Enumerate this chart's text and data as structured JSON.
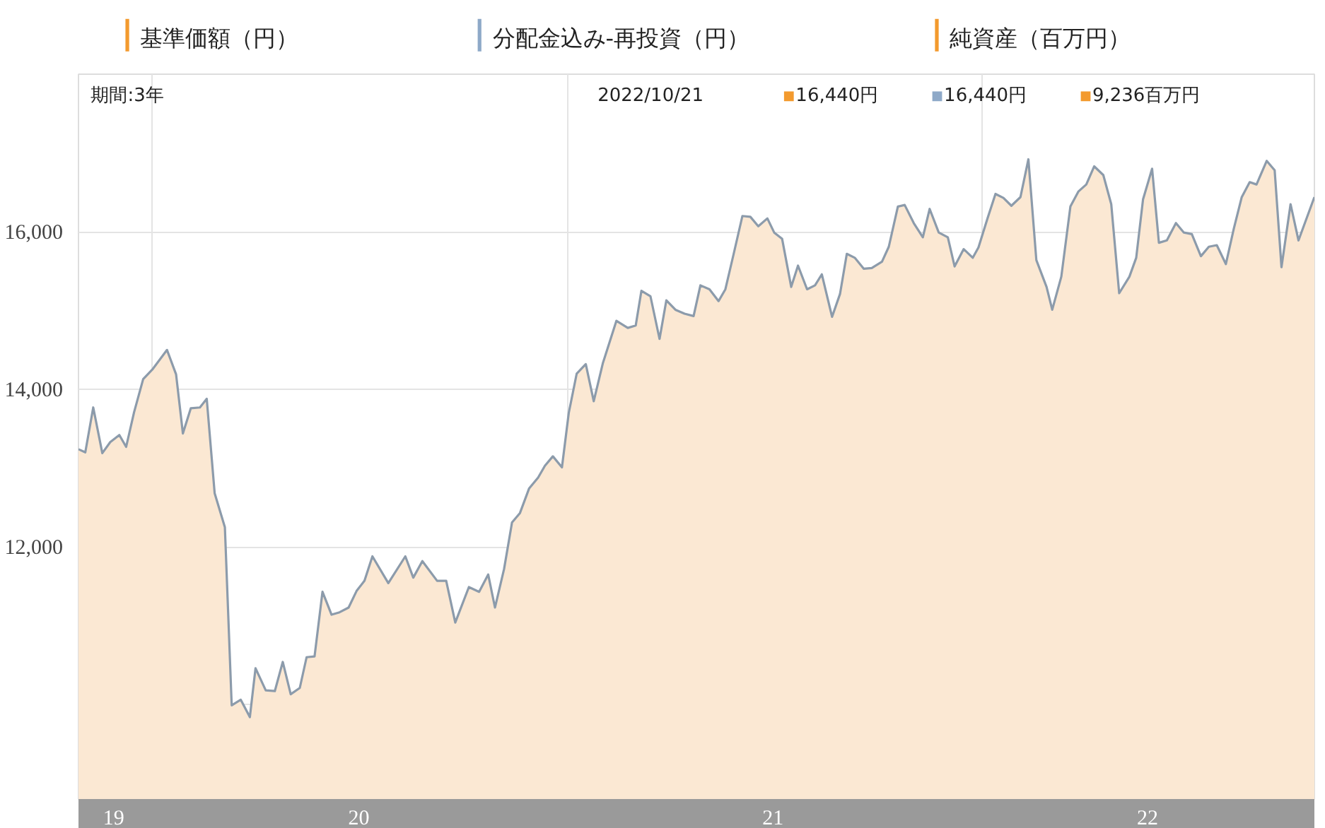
{
  "chart_data": {
    "type": "area",
    "x": [
      "2019-10-28",
      "2019-11-03",
      "2019-11-10",
      "2019-11-18",
      "2019-11-25",
      "2019-12-03",
      "2019-12-09",
      "2019-12-16",
      "2019-12-24",
      "2020-01-01",
      "2020-01-14",
      "2020-01-22",
      "2020-01-28",
      "2020-02-04",
      "2020-02-12",
      "2020-02-18",
      "2020-02-25",
      "2020-03-05",
      "2020-03-11",
      "2020-03-19",
      "2020-03-27",
      "2020-04-01",
      "2020-04-10",
      "2020-04-18",
      "2020-04-25",
      "2020-05-02",
      "2020-05-10",
      "2020-05-16",
      "2020-05-23",
      "2020-05-30",
      "2020-06-07",
      "2020-06-14",
      "2020-06-22",
      "2020-06-29",
      "2020-07-06",
      "2020-07-13",
      "2020-07-27",
      "2020-08-11",
      "2020-08-18",
      "2020-08-26",
      "2020-09-08",
      "2020-09-16",
      "2020-09-24",
      "2020-10-06",
      "2020-10-15",
      "2020-10-23",
      "2020-10-29",
      "2020-11-06",
      "2020-11-13",
      "2020-11-20",
      "2020-11-28",
      "2020-12-06",
      "2020-12-12",
      "2020-12-19",
      "2020-12-27",
      "2021-01-02",
      "2021-01-09",
      "2021-01-17",
      "2021-01-24",
      "2021-02-01",
      "2021-02-13",
      "2021-02-23",
      "2021-03-02",
      "2021-03-07",
      "2021-03-15",
      "2021-03-23",
      "2021-03-29",
      "2021-04-06",
      "2021-04-14",
      "2021-04-22",
      "2021-04-28",
      "2021-05-06",
      "2021-05-14",
      "2021-05-20",
      "2021-05-27",
      "2021-06-04",
      "2021-06-11",
      "2021-06-18",
      "2021-06-26",
      "2021-07-02",
      "2021-07-09",
      "2021-07-17",
      "2021-07-23",
      "2021-07-31",
      "2021-08-07",
      "2021-08-13",
      "2021-08-22",
      "2021-08-29",
      "2021-09-04",
      "2021-09-11",
      "2021-09-19",
      "2021-09-26",
      "2021-10-05",
      "2021-10-11",
      "2021-10-19",
      "2021-10-25",
      "2021-11-02",
      "2021-11-10",
      "2021-11-16",
      "2021-11-24",
      "2021-12-02",
      "2021-12-08",
      "2021-12-16",
      "2021-12-24",
      "2021-12-29",
      "2022-01-06",
      "2022-01-13",
      "2022-01-20",
      "2022-01-27",
      "2022-02-04",
      "2022-02-11",
      "2022-02-18",
      "2022-02-27",
      "2022-03-04",
      "2022-03-12",
      "2022-03-20",
      "2022-03-27",
      "2022-04-03",
      "2022-04-10",
      "2022-04-18",
      "2022-04-25",
      "2022-05-02",
      "2022-05-11",
      "2022-05-17",
      "2022-05-23",
      "2022-05-31",
      "2022-06-06",
      "2022-06-13",
      "2022-06-21",
      "2022-06-28",
      "2022-07-05",
      "2022-07-13",
      "2022-07-20",
      "2022-07-27",
      "2022-08-04",
      "2022-08-11",
      "2022-08-18",
      "2022-08-25",
      "2022-08-31",
      "2022-09-09",
      "2022-09-16",
      "2022-09-22",
      "2022-09-30",
      "2022-10-07",
      "2022-10-21"
    ],
    "series": [
      {
        "color": "#fbe8d3",
        "values": [
          13240,
          13200,
          13770,
          13190,
          13330,
          13420,
          13270,
          13710,
          14130,
          14250,
          14500,
          14190,
          13440,
          13760,
          13770,
          13880,
          12680,
          12250,
          9990,
          10060,
          9840,
          10460,
          10180,
          10170,
          10540,
          10130,
          10210,
          10600,
          10610,
          11430,
          11140,
          11170,
          11230,
          11440,
          11570,
          11880,
          11540,
          11880,
          11610,
          11820,
          11570,
          11570,
          11040,
          11490,
          11430,
          11650,
          11230,
          11720,
          12310,
          12430,
          12740,
          12880,
          13030,
          13150,
          13010,
          13700,
          14200,
          14320,
          13850,
          14330,
          14870,
          14780,
          14810,
          15250,
          15180,
          14640,
          15130,
          15010,
          14960,
          14930,
          15320,
          15270,
          15120,
          15270,
          15700,
          16200,
          16190,
          16070,
          16170,
          15990,
          15910,
          15300,
          15570,
          15270,
          15320,
          15460,
          14920,
          15210,
          15720,
          15670,
          15530,
          15540,
          15620,
          15810,
          16320,
          16340,
          16110,
          15930,
          16290,
          15990,
          15930,
          15560,
          15780,
          15670,
          15800,
          16170,
          16480,
          16430,
          16330,
          16440,
          16920,
          15640,
          15300,
          15010,
          15430,
          16320,
          16510,
          16600,
          16830,
          16720,
          16350,
          15220,
          15430,
          15670,
          16410,
          16800,
          15860,
          15890,
          16110,
          15990,
          15970,
          15690,
          15810,
          15830,
          15590,
          16040,
          16440,
          16630,
          16600,
          16900,
          16780,
          15550,
          16350,
          15890,
          16440
        ]
      }
    ],
    "xlim": [
      "2019-10-28",
      "2022-10-21"
    ],
    "ylim": [
      8800,
      18000
    ],
    "xticks": [
      {
        "value": "2019-11-28",
        "label": "19"
      },
      {
        "value": "2020-01-01",
        "label": null
      },
      {
        "value": "2020-07-01",
        "label": "20"
      },
      {
        "value": "2021-01-01",
        "label": null
      },
      {
        "value": "2021-07-01",
        "label": "21"
      },
      {
        "value": "2022-01-01",
        "label": null
      },
      {
        "value": "2022-05-27",
        "label": "22"
      }
    ],
    "yticks": [
      {
        "value": 10000,
        "label": null
      },
      {
        "value": 12000,
        "label": "12,000"
      },
      {
        "value": 14000,
        "label": "14,000"
      },
      {
        "value": 16000,
        "label": "16,000"
      }
    ],
    "grid": true,
    "annotations": [
      "基準価額（円）",
      "分配金込み-再投資（円）",
      "純資産（百万円）",
      "期間:3年",
      "2022/10/21",
      "■16,440円",
      "■16,440円",
      "■9,236百万円"
    ]
  }
}
